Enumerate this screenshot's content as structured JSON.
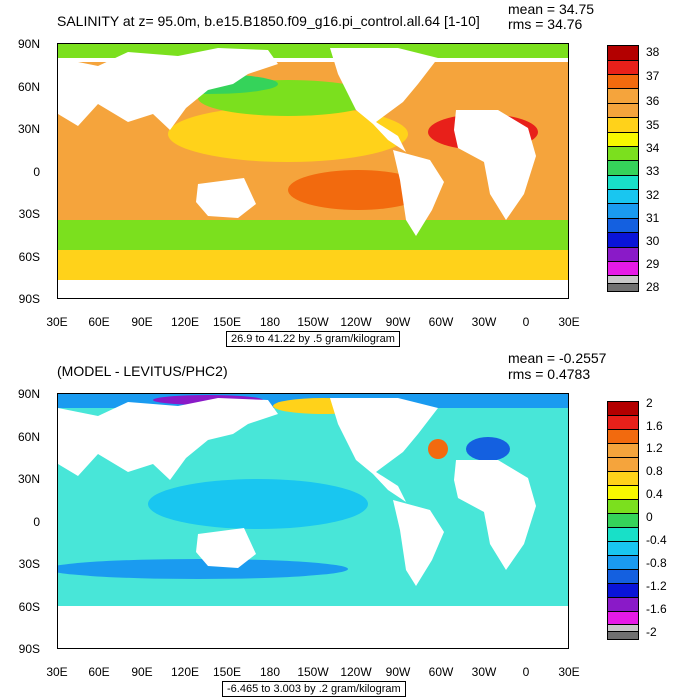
{
  "panels": [
    {
      "title": "SALINITY at z=  95.0m, b.e15.B1850.f09_g16.pi_control.all.64 [1-10]",
      "mean": "mean = 34.75",
      "rms": "rms = 34.76",
      "range": "26.9 to 41.22 by .5 gram/kilogram",
      "colorbar_labels": [
        "38",
        "37",
        "36",
        "35",
        "34",
        "33",
        "32",
        "31",
        "30",
        "29",
        "28"
      ],
      "colors": [
        "#b30000",
        "#e8201a",
        "#f26a0e",
        "#f5a43c",
        "#ffd21a",
        "#f8f800",
        "#7be01e",
        "#35d35a",
        "#18e0c8",
        "#19c6f0",
        "#1a9bf0",
        "#1460e0",
        "#0a14d8",
        "#8a1ac8",
        "#e61ae6",
        "#c8c8c8",
        "#707070"
      ],
      "ocean_base": "#f5a43c"
    },
    {
      "title": "(MODEL - LEVITUS/PHC2)",
      "mean": "mean = -0.2557",
      "rms": "rms = 0.4783",
      "range": "-6.465 to 3.003 by .2 gram/kilogram",
      "colorbar_labels": [
        "2",
        "1.6",
        "1.2",
        "0.8",
        "0.4",
        "0",
        "-0.4",
        "-0.8",
        "-1.2",
        "-1.6",
        "-2"
      ],
      "colors": [
        "#b30000",
        "#e8201a",
        "#f26a0e",
        "#f5a43c",
        "#ffd21a",
        "#f8f800",
        "#7be01e",
        "#35d35a",
        "#18e0c8",
        "#19c6f0",
        "#1a9bf0",
        "#1460e0",
        "#0a14d8",
        "#8a1ac8",
        "#e61ae6",
        "#c8c8c8",
        "#707070"
      ],
      "ocean_base": "#48e6d8"
    }
  ],
  "y_labels": [
    "90N",
    "60N",
    "30N",
    "0",
    "30S",
    "60S",
    "90S"
  ],
  "x_labels": [
    "30E",
    "60E",
    "90E",
    "120E",
    "150E",
    "180",
    "150W",
    "120W",
    "90W",
    "60W",
    "30W",
    "0",
    "30E"
  ]
}
